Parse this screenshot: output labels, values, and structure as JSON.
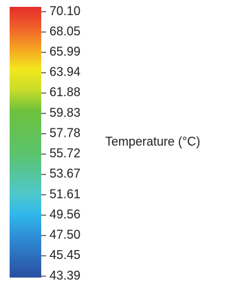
{
  "chart_data": {
    "type": "heatmap",
    "component": "colorbar",
    "orientation": "vertical",
    "title": "",
    "label": "Temperature (°C)",
    "range": [
      43.39,
      70.1
    ],
    "ticks": [
      "70.10",
      "68.05",
      "65.99",
      "63.94",
      "61.88",
      "59.83",
      "57.78",
      "55.72",
      "53.67",
      "51.61",
      "49.56",
      "47.50",
      "45.45",
      "43.39"
    ],
    "colormap": [
      {
        "value": 43.39,
        "color": "#2a4ea0"
      },
      {
        "value": 47.5,
        "color": "#2f8fd8"
      },
      {
        "value": 49.56,
        "color": "#2fb7ea"
      },
      {
        "value": 51.61,
        "color": "#4ec8cc"
      },
      {
        "value": 55.72,
        "color": "#5cc36a"
      },
      {
        "value": 59.83,
        "color": "#6cc13d"
      },
      {
        "value": 61.88,
        "color": "#c8dc2a"
      },
      {
        "value": 63.94,
        "color": "#f2e81e"
      },
      {
        "value": 65.99,
        "color": "#f6a323"
      },
      {
        "value": 68.05,
        "color": "#f0612a"
      },
      {
        "value": 70.1,
        "color": "#e52d2a"
      }
    ]
  }
}
